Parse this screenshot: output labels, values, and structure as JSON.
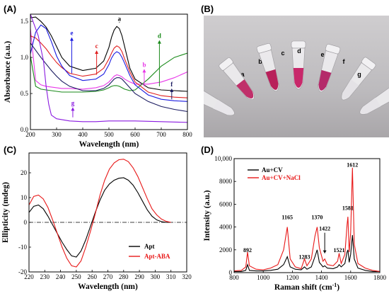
{
  "panels": {
    "a": "(A)",
    "b": "(B)",
    "c": "(C)",
    "d": "(D)"
  },
  "photo": {
    "tube_labels": [
      "a",
      "b",
      "c",
      "d",
      "e",
      "f",
      "g"
    ]
  },
  "chart_data": [
    {
      "panel": "(A)",
      "type": "line",
      "xlabel": "Wavelength (nm)",
      "ylabel": "Absorbance (a.u.)",
      "xlim": [
        200,
        800
      ],
      "ylim": [
        0,
        1.6
      ],
      "xticks": [
        200,
        300,
        400,
        500,
        600,
        700,
        800
      ],
      "yticks": [
        0.0,
        0.5,
        1.0,
        1.5
      ],
      "yticklabels": [
        "0.0",
        "0.5",
        "1.0",
        "1.5"
      ],
      "series": [
        {
          "name": "a",
          "color": "#000000",
          "x": [
            200,
            220,
            240,
            260,
            280,
            300,
            320,
            350,
            400,
            450,
            480,
            500,
            510,
            520,
            530,
            540,
            550,
            560,
            580,
            600,
            650,
            700,
            750,
            800
          ],
          "y": [
            1.55,
            1.56,
            1.5,
            1.42,
            1.3,
            1.15,
            1.0,
            0.88,
            0.82,
            0.85,
            0.95,
            1.14,
            1.28,
            1.38,
            1.43,
            1.4,
            1.3,
            1.15,
            0.85,
            0.7,
            0.58,
            0.55,
            0.54,
            0.53
          ]
        },
        {
          "name": "b",
          "color": "#e838e8",
          "x": [
            200,
            220,
            240,
            260,
            280,
            300,
            320,
            350,
            400,
            450,
            480,
            500,
            510,
            520,
            530,
            540,
            550,
            560,
            580,
            600,
            650,
            700,
            750,
            800
          ],
          "y": [
            1.4,
            0.68,
            0.62,
            0.6,
            0.59,
            0.58,
            0.57,
            0.57,
            0.56,
            0.58,
            0.61,
            0.66,
            0.7,
            0.74,
            0.76,
            0.75,
            0.73,
            0.7,
            0.66,
            0.63,
            0.63,
            0.66,
            0.72,
            0.8
          ]
        },
        {
          "name": "c",
          "color": "#e02020",
          "x": [
            200,
            220,
            240,
            260,
            280,
            300,
            320,
            350,
            400,
            450,
            480,
            500,
            510,
            520,
            530,
            540,
            550,
            560,
            580,
            600,
            650,
            700,
            750,
            800
          ],
          "y": [
            1.3,
            1.27,
            1.2,
            1.12,
            1.02,
            0.93,
            0.86,
            0.78,
            0.74,
            0.77,
            0.85,
            0.98,
            1.06,
            1.13,
            1.16,
            1.14,
            1.08,
            0.98,
            0.8,
            0.66,
            0.52,
            0.47,
            0.45,
            0.44
          ]
        },
        {
          "name": "d",
          "color": "#1a8a1a",
          "x": [
            200,
            220,
            240,
            260,
            280,
            300,
            320,
            350,
            400,
            450,
            480,
            500,
            510,
            520,
            530,
            540,
            550,
            560,
            580,
            600,
            650,
            700,
            750,
            800
          ],
          "y": [
            1.02,
            0.6,
            0.56,
            0.55,
            0.54,
            0.53,
            0.52,
            0.52,
            0.52,
            0.53,
            0.55,
            0.58,
            0.6,
            0.61,
            0.61,
            0.6,
            0.58,
            0.56,
            0.54,
            0.55,
            0.7,
            0.88,
            1.0,
            1.06
          ]
        },
        {
          "name": "e",
          "color": "#1a1ae0",
          "x": [
            200,
            220,
            240,
            260,
            280,
            300,
            320,
            350,
            400,
            450,
            480,
            500,
            510,
            520,
            530,
            540,
            550,
            560,
            580,
            600,
            650,
            700,
            750,
            800
          ],
          "y": [
            1.05,
            1.35,
            1.45,
            1.4,
            1.22,
            1.02,
            0.88,
            0.75,
            0.68,
            0.7,
            0.77,
            0.9,
            0.99,
            1.05,
            1.08,
            1.06,
            1.0,
            0.92,
            0.75,
            0.62,
            0.48,
            0.42,
            0.4,
            0.39
          ]
        },
        {
          "name": "f",
          "color": "#1a1a60",
          "x": [
            200,
            220,
            240,
            260,
            280,
            300,
            320,
            350,
            400,
            450,
            480,
            500,
            510,
            520,
            530,
            540,
            550,
            560,
            580,
            600,
            650,
            700,
            750,
            800
          ],
          "y": [
            1.2,
            1.1,
            1.0,
            0.91,
            0.82,
            0.74,
            0.67,
            0.6,
            0.54,
            0.54,
            0.57,
            0.62,
            0.66,
            0.7,
            0.72,
            0.72,
            0.7,
            0.66,
            0.58,
            0.5,
            0.39,
            0.32,
            0.28,
            0.25
          ]
        },
        {
          "name": "g",
          "color": "#8a1ae0",
          "x": [
            200,
            230,
            250,
            260,
            270,
            280,
            300,
            350,
            400,
            450,
            500,
            550,
            600,
            700,
            800
          ],
          "y": [
            1.6,
            1.3,
            0.95,
            0.6,
            0.35,
            0.2,
            0.15,
            0.12,
            0.11,
            0.11,
            0.12,
            0.12,
            0.12,
            0.11,
            0.1
          ]
        }
      ],
      "annotations": [
        {
          "label": "a",
          "color": "#000000",
          "x": 540,
          "y": 1.45,
          "y1": 1.5,
          "dir": "down"
        },
        {
          "label": "b",
          "color": "#e838e8",
          "x": 635,
          "y": 0.84,
          "y1": 0.6,
          "dir": "up"
        },
        {
          "label": "c",
          "color": "#e02020",
          "x": 453,
          "y": 1.1,
          "y1": 0.76,
          "dir": "up"
        },
        {
          "label": "d",
          "color": "#1a8a1a",
          "x": 693,
          "y": 1.24,
          "y1": 0.6,
          "dir": "up"
        },
        {
          "label": "e",
          "color": "#1a1ae0",
          "x": 358,
          "y": 1.28,
          "y1": 0.78,
          "dir": "up"
        },
        {
          "label": "f",
          "color": "#1a1a60",
          "x": 740,
          "y": 0.57,
          "y1": 0.42,
          "dir": "up"
        },
        {
          "label": "g",
          "color": "#8a1ae0",
          "x": 362,
          "y": 0.31,
          "y1": 0.17,
          "dir": "up"
        }
      ]
    },
    {
      "panel": "(C)",
      "type": "line",
      "xlabel": "Wavelength (nm)",
      "ylabel": "Ellipticity (mdeg)",
      "xlim": [
        220,
        320
      ],
      "ylim": [
        -20,
        28
      ],
      "xticks": [
        220,
        230,
        240,
        250,
        260,
        270,
        280,
        290,
        300,
        310,
        320
      ],
      "yticks": [
        -20,
        -10,
        0,
        10,
        20
      ],
      "legend": "bottom-right",
      "series": [
        {
          "name": "Apt",
          "color": "#000000",
          "x": [
            220,
            223,
            226,
            229,
            232,
            235,
            238,
            241,
            244,
            247,
            250,
            253,
            256,
            259,
            262,
            265,
            268,
            271,
            274,
            277,
            280,
            283,
            286,
            289,
            292,
            295,
            298,
            301,
            304,
            307,
            310
          ],
          "y": [
            4,
            6.5,
            7,
            5.5,
            2.5,
            -1,
            -4.5,
            -8,
            -11,
            -13.5,
            -14,
            -11.5,
            -7,
            -1.5,
            4,
            9,
            13,
            15.5,
            17,
            17.8,
            18,
            17,
            15,
            12,
            8.5,
            5,
            2.5,
            1,
            0.3,
            0,
            0
          ]
        },
        {
          "name": "Apt-ABA",
          "color": "#e81818",
          "x": [
            220,
            223,
            226,
            229,
            232,
            235,
            238,
            241,
            244,
            247,
            250,
            253,
            256,
            259,
            262,
            265,
            268,
            271,
            274,
            277,
            280,
            283,
            286,
            289,
            292,
            295,
            298,
            301,
            304,
            307,
            310
          ],
          "y": [
            7,
            10.5,
            11,
            9.5,
            6,
            1,
            -4.5,
            -10,
            -14.5,
            -17.5,
            -18,
            -15.5,
            -10,
            -3.5,
            3.5,
            11,
            17,
            21.5,
            24,
            25.3,
            25.5,
            24.5,
            22,
            18.5,
            14,
            9.5,
            5.5,
            3,
            1.3,
            0.4,
            0
          ]
        }
      ]
    },
    {
      "panel": "(D)",
      "type": "line",
      "xlabel": "Raman shift (cm",
      "xlabel_sup": "-1",
      "xlabel_end": ")",
      "ylabel": "Intensity (a.u.)",
      "xlim": [
        800,
        1800
      ],
      "ylim": [
        0,
        10000
      ],
      "xticks": [
        800,
        1000,
        1200,
        1400,
        1600,
        1800
      ],
      "yticks": [
        0,
        2000,
        4000,
        6000,
        8000,
        10000
      ],
      "yticklabels": [
        "0",
        "2000",
        "4000",
        "6000",
        "8000",
        "10,000"
      ],
      "legend": "top-left",
      "peak_labels": [
        {
          "text": "892",
          "x": 892,
          "y": 1800
        },
        {
          "text": "1165",
          "x": 1165,
          "y": 4700
        },
        {
          "text": "1283",
          "x": 1283,
          "y": 1200
        },
        {
          "text": "1370",
          "x": 1370,
          "y": 4700
        },
        {
          "text": "1422",
          "x": 1422,
          "y": 3700
        },
        {
          "text": "1521",
          "x": 1521,
          "y": 1800
        },
        {
          "text": "1581",
          "x": 1581,
          "y": 5500
        },
        {
          "text": "1612",
          "x": 1612,
          "y": 9300
        }
      ],
      "series": [
        {
          "name": "Au+CV",
          "color": "#000000",
          "x": [
            800,
            850,
            880,
            892,
            905,
            950,
            1000,
            1050,
            1100,
            1140,
            1165,
            1185,
            1220,
            1260,
            1283,
            1300,
            1330,
            1355,
            1370,
            1385,
            1410,
            1422,
            1440,
            1480,
            1510,
            1521,
            1535,
            1560,
            1575,
            1581,
            1590,
            1600,
            1612,
            1625,
            1650,
            1700,
            1750,
            1800
          ],
          "y": [
            100,
            100,
            200,
            700,
            200,
            150,
            150,
            200,
            300,
            700,
            1400,
            500,
            300,
            250,
            500,
            300,
            500,
            1400,
            2000,
            900,
            500,
            600,
            400,
            350,
            500,
            700,
            500,
            800,
            1800,
            2000,
            900,
            1600,
            3300,
            1200,
            400,
            200,
            100,
            100
          ]
        },
        {
          "name": "Au+CV+NaCl",
          "color": "#e81818",
          "x": [
            800,
            850,
            880,
            892,
            905,
            950,
            1000,
            1050,
            1100,
            1140,
            1165,
            1185,
            1220,
            1260,
            1283,
            1300,
            1330,
            1355,
            1370,
            1385,
            1410,
            1422,
            1440,
            1480,
            1510,
            1521,
            1535,
            1560,
            1575,
            1581,
            1590,
            1600,
            1612,
            1625,
            1650,
            1700,
            1750,
            1800
          ],
          "y": [
            150,
            200,
            500,
            1800,
            600,
            300,
            250,
            400,
            700,
            2000,
            4000,
            1200,
            500,
            350,
            1200,
            600,
            1200,
            3200,
            4000,
            2200,
            1000,
            1200,
            700,
            600,
            1000,
            1700,
            800,
            1600,
            4200,
            4900,
            1800,
            3500,
            9200,
            2500,
            800,
            400,
            200,
            100
          ]
        }
      ]
    }
  ]
}
